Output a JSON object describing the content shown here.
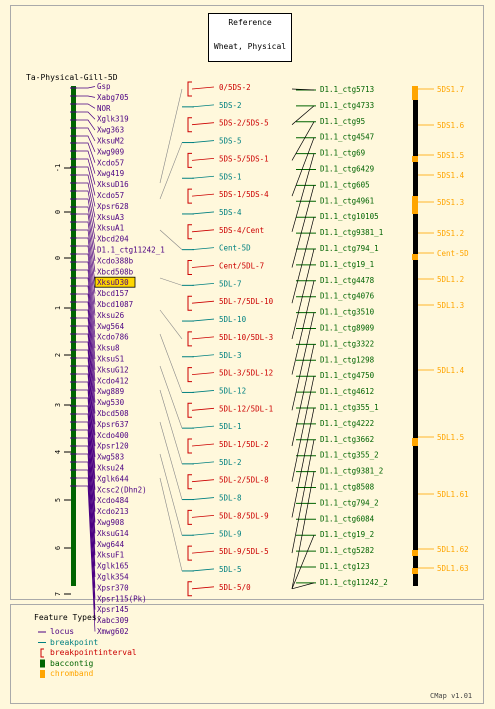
{
  "reference": {
    "line1": "Reference",
    "line2": "Wheat, Physical"
  },
  "map_title": "Ta-Physical-Gill-5D",
  "colors": {
    "locus": "#4b0082",
    "breakpoint": "#008080",
    "interval": "#cc0000",
    "contig_green": "#006400",
    "contig_black": "#000000",
    "chromband": "#ffa500",
    "cent": "#996633"
  },
  "axis_ticks": [
    "-1",
    "0",
    "0",
    "1",
    "2",
    "3",
    "4",
    "5",
    "6",
    "7"
  ],
  "loci": [
    "Gsp",
    "Xabg705",
    "NOR",
    "Xglk319",
    "Xwg363",
    "XksuM2",
    "Xwg909",
    "Xcdo57",
    "Xwg419",
    "XksuD16",
    "Xcdo57",
    "Xpsr628",
    "XksuA3",
    "XksuA1",
    "Xbcd204",
    "D1.1_ctg11242_1",
    "Xcdo388b",
    "Xbcd508b",
    "XksuD30",
    "Xbcd157",
    "Xbcd1087",
    "Xksu26",
    "Xwg564",
    "Xcdo786",
    "Xksu8",
    "XksuS1",
    "XksuG12",
    "Xcdo412",
    "Xwg889",
    "Xwg530",
    "Xbcd508",
    "Xpsr637",
    "Xcdo400",
    "Xpsr120",
    "Xwg583",
    "Xksu24",
    "Xglk644",
    "Xcsc2(Dhn2)",
    "Xcdo484",
    "Xcdo213",
    "Xwg908",
    "XksuG14",
    "Xwg644",
    "XksuF1",
    "Xglk165",
    "Xglk354",
    "Xpsr370",
    "Xpsr115(Pk)",
    "Xpsr145",
    "Xabc309",
    "Xmwg602"
  ],
  "highlight_locus": "XksuD30",
  "intervals": [
    {
      "label": "0/5DS-2",
      "kind": "interval"
    },
    {
      "label": "5DS-2",
      "kind": "breakpoint"
    },
    {
      "label": "5DS-2/5DS-5",
      "kind": "interval"
    },
    {
      "label": "5DS-5",
      "kind": "breakpoint"
    },
    {
      "label": "5DS-5/5DS-1",
      "kind": "interval"
    },
    {
      "label": "5DS-1",
      "kind": "breakpoint"
    },
    {
      "label": "5DS-1/5DS-4",
      "kind": "interval"
    },
    {
      "label": "5DS-4",
      "kind": "breakpoint"
    },
    {
      "label": "5DS-4/Cent",
      "kind": "interval"
    },
    {
      "label": "Cent-5D",
      "kind": "breakpoint"
    },
    {
      "label": "Cent/5DL-7",
      "kind": "interval"
    },
    {
      "label": "5DL-7",
      "kind": "breakpoint"
    },
    {
      "label": "5DL-7/5DL-10",
      "kind": "interval"
    },
    {
      "label": "5DL-10",
      "kind": "breakpoint"
    },
    {
      "label": "5DL-10/5DL-3",
      "kind": "interval"
    },
    {
      "label": "5DL-3",
      "kind": "breakpoint"
    },
    {
      "label": "5DL-3/5DL-12",
      "kind": "interval"
    },
    {
      "label": "5DL-12",
      "kind": "breakpoint"
    },
    {
      "label": "5DL-12/5DL-1",
      "kind": "interval"
    },
    {
      "label": "5DL-1",
      "kind": "breakpoint"
    },
    {
      "label": "5DL-1/5DL-2",
      "kind": "interval"
    },
    {
      "label": "5DL-2",
      "kind": "breakpoint"
    },
    {
      "label": "5DL-2/5DL-8",
      "kind": "interval"
    },
    {
      "label": "5DL-8",
      "kind": "breakpoint"
    },
    {
      "label": "5DL-8/5DL-9",
      "kind": "interval"
    },
    {
      "label": "5DL-9",
      "kind": "breakpoint"
    },
    {
      "label": "5DL-9/5DL-5",
      "kind": "interval"
    },
    {
      "label": "5DL-5",
      "kind": "breakpoint"
    },
    {
      "label": "5DL-5/0",
      "kind": "interval"
    }
  ],
  "contigs": [
    "D1.1_ctg5713",
    "D1.1_ctg4733",
    "D1.1_ctg95",
    "D1.1_ctg4547",
    "D1.1_ctg69",
    "D1.1_ctg6429",
    "D1.1_ctg605",
    "D1.1_ctg4961",
    "D1.1_ctg10105",
    "D1.1_ctg9381_1",
    "D1.1_ctg794_1",
    "D1.1_ctg19_1",
    "D1.1_ctg4478",
    "D1.1_ctg4076",
    "D1.1_ctg3510",
    "D1.1_ctg8909",
    "D1.1_ctg3322",
    "D1.1_ctg1298",
    "D1.1_ctg4750",
    "D1.1_ctg4612",
    "D1.1_ctg355_1",
    "D1.1_ctg4222",
    "D1.1_ctg3662",
    "D1.1_ctg355_2",
    "D1.1_ctg9381_2",
    "D1.1_ctg8508",
    "D1.1_ctg794_2",
    "D1.1_ctg6084",
    "D1.1_ctg19_2",
    "D1.1_ctg5282",
    "D1.1_ctg123",
    "D1.1_ctg11242_2"
  ],
  "bands": [
    "5DS1.7",
    "5DS1.6",
    "5DS1.5",
    "5DS1.4",
    "5DS1.3",
    "5DS1.2",
    "Cent-5D",
    "5DL1.2",
    "5DL1.3",
    "5DL1.4",
    "5DL1.5",
    "5DL1.61",
    "5DL1.62",
    "5DL1.63"
  ],
  "legend": {
    "title": "Feature Types:",
    "items": [
      {
        "label": "locus",
        "kind": "locus"
      },
      {
        "label": "breakpoint",
        "kind": "breakpoint"
      },
      {
        "label": "breakpointinterval",
        "kind": "interval"
      },
      {
        "label": "baccontig",
        "kind": "contig"
      },
      {
        "label": "chromband",
        "kind": "chromband"
      }
    ]
  },
  "version": "CMap v1.01"
}
